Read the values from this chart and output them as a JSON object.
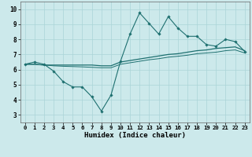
{
  "xlabel": "Humidex (Indice chaleur)",
  "background_color": "#cce9eb",
  "grid_color": "#aad4d7",
  "line_color": "#1e7070",
  "xlim": [
    -0.5,
    23.5
  ],
  "ylim": [
    2.5,
    10.5
  ],
  "xticks": [
    0,
    1,
    2,
    3,
    4,
    5,
    6,
    7,
    8,
    9,
    10,
    11,
    12,
    13,
    14,
    15,
    16,
    17,
    18,
    19,
    20,
    21,
    22,
    23
  ],
  "yticks": [
    3,
    4,
    5,
    6,
    7,
    8,
    9,
    10
  ],
  "series1_x": [
    0,
    1,
    2,
    3,
    4,
    5,
    6,
    7,
    8,
    9,
    10,
    11,
    12,
    13,
    14,
    15,
    16,
    17,
    18,
    19,
    20,
    21,
    22,
    23
  ],
  "series1_y": [
    6.35,
    6.5,
    6.35,
    5.9,
    5.2,
    4.85,
    4.85,
    4.2,
    3.25,
    4.3,
    6.55,
    8.35,
    9.75,
    9.05,
    8.35,
    9.5,
    8.75,
    8.2,
    8.2,
    7.65,
    7.55,
    8.0,
    7.85,
    7.2
  ],
  "series2_x": [
    0,
    1,
    2,
    3,
    4,
    5,
    6,
    7,
    8,
    9,
    10,
    11,
    12,
    13,
    14,
    15,
    16,
    17,
    18,
    19,
    20,
    21,
    22,
    23
  ],
  "series2_y": [
    6.35,
    6.35,
    6.3,
    6.3,
    6.3,
    6.3,
    6.3,
    6.3,
    6.25,
    6.25,
    6.5,
    6.6,
    6.7,
    6.8,
    6.9,
    7.0,
    7.05,
    7.15,
    7.25,
    7.3,
    7.4,
    7.45,
    7.5,
    7.25
  ],
  "series3_x": [
    0,
    1,
    2,
    3,
    4,
    5,
    6,
    7,
    8,
    9,
    10,
    11,
    12,
    13,
    14,
    15,
    16,
    17,
    18,
    19,
    20,
    21,
    22,
    23
  ],
  "series3_y": [
    6.35,
    6.35,
    6.3,
    6.25,
    6.22,
    6.2,
    6.18,
    6.15,
    6.12,
    6.12,
    6.35,
    6.45,
    6.55,
    6.65,
    6.72,
    6.82,
    6.88,
    6.95,
    7.05,
    7.1,
    7.15,
    7.25,
    7.3,
    7.1
  ]
}
